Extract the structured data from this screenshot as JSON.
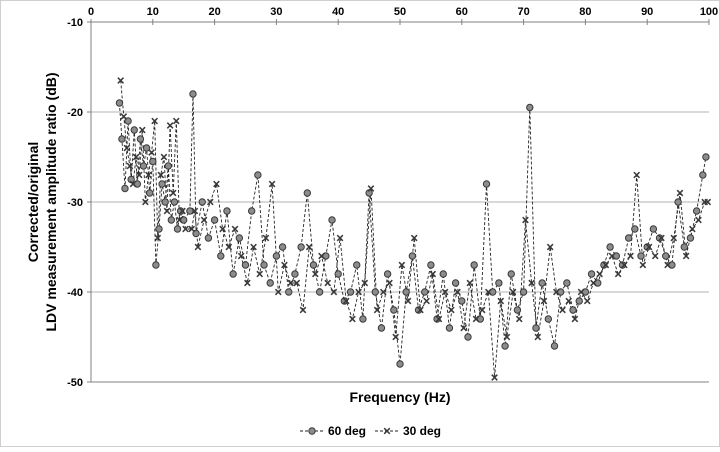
{
  "chart_data": {
    "type": "scatter",
    "title": "",
    "xlabel": "Frequency (Hz)",
    "ylabel_lines": [
      "Corrected/original",
      "LDV measurement amplitude ratio (dB)"
    ],
    "xlim": [
      0,
      100
    ],
    "ylim": [
      -50,
      -10
    ],
    "x_ticks": [
      "0",
      "10",
      "20",
      "30",
      "40",
      "50",
      "60",
      "70",
      "80",
      "90",
      "100"
    ],
    "y_ticks": [
      "-10",
      "-20",
      "-30",
      "-40",
      "-50"
    ],
    "x_axis_position": "top",
    "grid": "horizontal",
    "legend_position": "bottom",
    "series": [
      {
        "name": "60 deg",
        "marker": "circle",
        "color": "#555555",
        "x": [
          4.6,
          5,
          5.5,
          6,
          6.5,
          7,
          7.5,
          8,
          8.5,
          9,
          9.5,
          10,
          10.5,
          11,
          11.5,
          12,
          12.5,
          13,
          13.5,
          14,
          14.5,
          15,
          16,
          16.5,
          17,
          18,
          19,
          20,
          21,
          22,
          23,
          24,
          25,
          26,
          27,
          28,
          29,
          30,
          31,
          32,
          33,
          34,
          35,
          36,
          37,
          38,
          39,
          40,
          41,
          42,
          43,
          44,
          45,
          46,
          47,
          48,
          49,
          50,
          51,
          52,
          53,
          54,
          55,
          56,
          57,
          58,
          59,
          60,
          61,
          62,
          63,
          64,
          65,
          66,
          67,
          68,
          69,
          70,
          71,
          72,
          73,
          74,
          75,
          76,
          77,
          78,
          79,
          80,
          81,
          82,
          83,
          84,
          85,
          86,
          87,
          88,
          89,
          90,
          91,
          92,
          93,
          94,
          95,
          96,
          97,
          98,
          99,
          99.5
        ],
        "y": [
          -19,
          -23,
          -28.5,
          -21,
          -27.5,
          -22,
          -28,
          -23,
          -26,
          -24,
          -29,
          -25.5,
          -37,
          -33,
          -28,
          -30,
          -26,
          -32,
          -30,
          -33,
          -31,
          -32,
          -31,
          -18,
          -33.5,
          -30,
          -34,
          -32,
          -36,
          -31,
          -38,
          -34,
          -37,
          -31,
          -27,
          -37,
          -39,
          -36,
          -35,
          -40,
          -38,
          -35,
          -29,
          -37,
          -40,
          -36,
          -32,
          -38,
          -41,
          -40,
          -37,
          -43,
          -29,
          -40,
          -44,
          -38,
          -42,
          -48,
          -40,
          -36,
          -42,
          -40,
          -37,
          -43,
          -38,
          -44,
          -39,
          -41,
          -45,
          -37,
          -43,
          -28,
          -40,
          -39,
          -46,
          -38,
          -42,
          -40,
          -19.5,
          -44,
          -39,
          -43,
          -46,
          -40,
          -39,
          -42,
          -41,
          -40,
          -38,
          -39,
          -37,
          -35,
          -36,
          -37,
          -34,
          -33,
          -36,
          -35,
          -33,
          -34,
          -36,
          -37,
          -30,
          -35,
          -34,
          -31,
          -27,
          -25
        ]
      },
      {
        "name": "30 deg",
        "marker": "x",
        "color": "#555555",
        "x": [
          4.8,
          5.3,
          5.8,
          6.3,
          6.8,
          7.3,
          7.8,
          8.3,
          8.8,
          9.3,
          9.8,
          10.3,
          10.8,
          11.3,
          11.8,
          12.3,
          12.8,
          13.3,
          13.8,
          14.3,
          14.8,
          15.3,
          16.3,
          16.8,
          17.3,
          18.3,
          19.3,
          20.3,
          21.3,
          22.3,
          23.3,
          24.3,
          25.3,
          26.3,
          27.3,
          28.3,
          29.3,
          30.3,
          31.3,
          32.3,
          33.3,
          34.3,
          35.3,
          36.3,
          37.3,
          38.3,
          39.3,
          40.3,
          41.3,
          42.3,
          43.3,
          44.3,
          45.3,
          46.3,
          47.3,
          48.3,
          49.3,
          50.3,
          51.3,
          52.3,
          53.3,
          54.3,
          55.3,
          56.3,
          57.3,
          58.3,
          59.3,
          60.3,
          61.3,
          62.3,
          63.3,
          64.3,
          65.3,
          66.3,
          67.3,
          68.3,
          69.3,
          70.3,
          71.3,
          72.3,
          73.3,
          74.3,
          75.3,
          76.3,
          77.3,
          78.3,
          79.3,
          80.3,
          81.3,
          82.3,
          83.3,
          84.3,
          85.3,
          86.3,
          87.3,
          88.3,
          89.3,
          90.3,
          91.3,
          92.3,
          93.3,
          94.3,
          95.3,
          96.3,
          97.3,
          98.3,
          99.3,
          99.8
        ],
        "y": [
          -16.5,
          -20.5,
          -24,
          -26,
          -28,
          -25,
          -27,
          -22,
          -30,
          -27,
          -24.5,
          -21,
          -34,
          -27,
          -25,
          -31,
          -21.5,
          -29,
          -21,
          -32,
          -31,
          -33,
          -33,
          -31,
          -35,
          -32,
          -30,
          -28,
          -33,
          -35,
          -33,
          -36,
          -39,
          -35,
          -38,
          -34,
          -28,
          -40,
          -37,
          -39,
          -39,
          -42,
          -35,
          -38,
          -36,
          -39,
          -40,
          -34,
          -41,
          -43,
          -40,
          -39,
          -28.5,
          -42,
          -40,
          -39,
          -45,
          -37,
          -41,
          -34,
          -42,
          -41,
          -38,
          -43,
          -40,
          -42,
          -40,
          -44,
          -39,
          -43,
          -42,
          -40,
          -49.5,
          -41,
          -45,
          -40,
          -43,
          -32,
          -39,
          -45,
          -41,
          -35,
          -40,
          -42,
          -41,
          -43,
          -40,
          -41,
          -39,
          -38,
          -37,
          -36,
          -38,
          -37,
          -36,
          -27,
          -37,
          -35,
          -36,
          -34,
          -37,
          -34,
          -29,
          -36,
          -33,
          -32,
          -30,
          -30
        ]
      }
    ]
  }
}
